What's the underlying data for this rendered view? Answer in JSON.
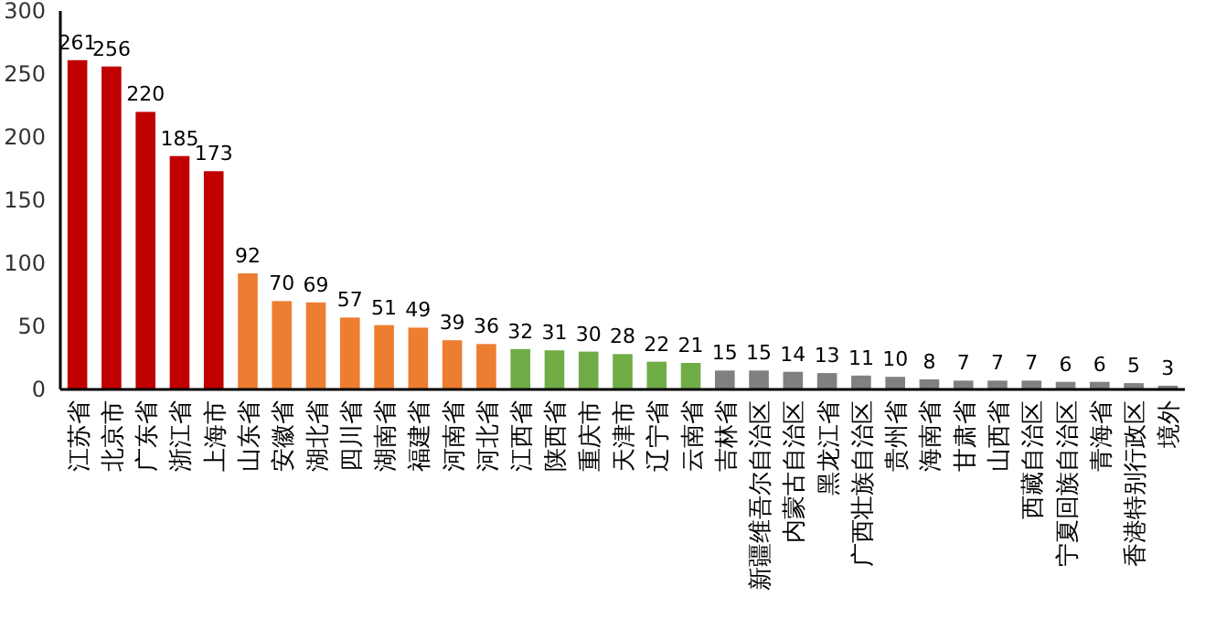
{
  "chart_data": {
    "type": "bar",
    "categories": [
      "江苏省",
      "北京市",
      "广东省",
      "浙江省",
      "上海市",
      "山东省",
      "安徽省",
      "湖北省",
      "四川省",
      "湖南省",
      "福建省",
      "河南省",
      "河北省",
      "江西省",
      "陕西省",
      "重庆市",
      "天津市",
      "辽宁省",
      "云南省",
      "吉林省",
      "新疆维吾尔自治区",
      "内蒙古自治区",
      "黑龙江省",
      "广西壮族自治区",
      "贵州省",
      "海南省",
      "甘肃省",
      "山西省",
      "西藏自治区",
      "宁夏回族自治区",
      "青海省",
      "香港特别行政区",
      "境外"
    ],
    "values": [
      261,
      256,
      220,
      185,
      173,
      92,
      70,
      69,
      57,
      51,
      49,
      39,
      36,
      32,
      31,
      30,
      28,
      22,
      21,
      15,
      15,
      14,
      13,
      11,
      10,
      8,
      7,
      7,
      7,
      6,
      6,
      5,
      3
    ],
    "colors": [
      "#c00000",
      "#c00000",
      "#c00000",
      "#c00000",
      "#c00000",
      "#ed7d31",
      "#ed7d31",
      "#ed7d31",
      "#ed7d31",
      "#ed7d31",
      "#ed7d31",
      "#ed7d31",
      "#ed7d31",
      "#70ad47",
      "#70ad47",
      "#70ad47",
      "#70ad47",
      "#70ad47",
      "#70ad47",
      "#808080",
      "#808080",
      "#808080",
      "#808080",
      "#808080",
      "#808080",
      "#808080",
      "#808080",
      "#808080",
      "#808080",
      "#808080",
      "#808080",
      "#808080",
      "#808080"
    ],
    "ylim": [
      0,
      300
    ],
    "yticks": [
      0,
      50,
      100,
      150,
      200,
      250,
      300
    ],
    "data_labels": true
  }
}
